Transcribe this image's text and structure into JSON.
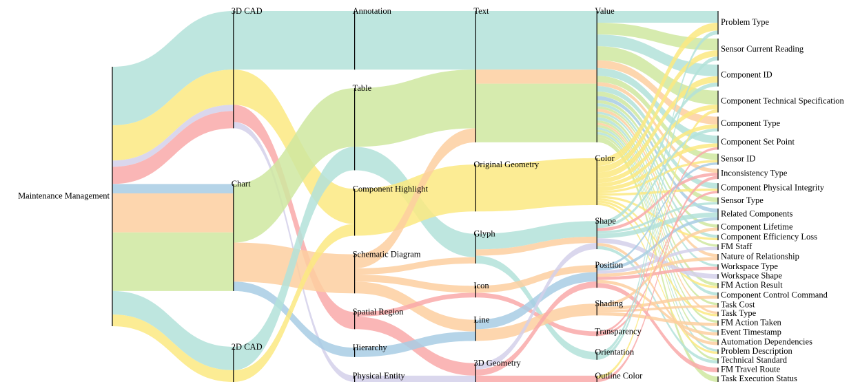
{
  "chart_data": {
    "type": "sankey",
    "nodes": [
      {
        "name": "Maintenance Management",
        "column": 0
      },
      {
        "name": "3D CAD",
        "column": 1
      },
      {
        "name": "Chart",
        "column": 1
      },
      {
        "name": "2D CAD",
        "column": 1
      },
      {
        "name": "Annotation",
        "column": 2
      },
      {
        "name": "Table",
        "column": 2
      },
      {
        "name": "Component Highlight",
        "column": 2
      },
      {
        "name": "Schematic Diagram",
        "column": 2
      },
      {
        "name": "Spatial Region",
        "column": 2
      },
      {
        "name": "Hierarchy",
        "column": 2
      },
      {
        "name": "Physical Entity",
        "column": 2
      },
      {
        "name": "Text",
        "column": 3
      },
      {
        "name": "Original Geometry",
        "column": 3
      },
      {
        "name": "Glyph",
        "column": 3
      },
      {
        "name": "Icon",
        "column": 3
      },
      {
        "name": "Line",
        "column": 3
      },
      {
        "name": "3D Geometry",
        "column": 3
      },
      {
        "name": "Value",
        "column": 4
      },
      {
        "name": "Color",
        "column": 4
      },
      {
        "name": "Shape",
        "column": 4
      },
      {
        "name": "Position",
        "column": 4
      },
      {
        "name": "Shading",
        "column": 4
      },
      {
        "name": "Transparency",
        "column": 4
      },
      {
        "name": "Orientation",
        "column": 4
      },
      {
        "name": "Outline Color",
        "column": 4
      },
      {
        "name": "Problem Type",
        "column": 5
      },
      {
        "name": "Sensor Current Reading",
        "column": 5
      },
      {
        "name": "Component ID",
        "column": 5
      },
      {
        "name": "Component Technical Specification",
        "column": 5
      },
      {
        "name": "Component Type",
        "column": 5
      },
      {
        "name": "Component Set Point",
        "column": 5
      },
      {
        "name": "Sensor ID",
        "column": 5
      },
      {
        "name": "Inconsistency Type",
        "column": 5
      },
      {
        "name": "Component Physical Integrity",
        "column": 5
      },
      {
        "name": "Sensor Type",
        "column": 5
      },
      {
        "name": "Related Components",
        "column": 5
      },
      {
        "name": "Component Lifetime",
        "column": 5
      },
      {
        "name": "Component Efficiency Loss",
        "column": 5
      },
      {
        "name": "FM Staff",
        "column": 5
      },
      {
        "name": "Nature of Relationship",
        "column": 5
      },
      {
        "name": "Workspace Type",
        "column": 5
      },
      {
        "name": "Workspace Shape",
        "column": 5
      },
      {
        "name": "FM Action Result",
        "column": 5
      },
      {
        "name": "Component Control Command",
        "column": 5
      },
      {
        "name": "Task Cost",
        "column": 5
      },
      {
        "name": "Task Type",
        "column": 5
      },
      {
        "name": "FM Action Taken",
        "column": 5
      },
      {
        "name": "Event Timestamp",
        "column": 5
      },
      {
        "name": "Automation Dependencies",
        "column": 5
      },
      {
        "name": "Problem Description",
        "column": 5
      },
      {
        "name": "Technical Standard",
        "column": 5
      },
      {
        "name": "FM Travel Route",
        "column": 5
      },
      {
        "name": "Task Execution Status",
        "column": 5
      }
    ],
    "links": [
      {
        "source": 0,
        "target": 1,
        "value": 7.5,
        "color": "#b3e2d9"
      },
      {
        "source": 0,
        "target": 1,
        "value": 4.5,
        "color": "#fbe981"
      },
      {
        "source": 0,
        "target": 1,
        "value": 0.8,
        "color": "#d3d0ea"
      },
      {
        "source": 0,
        "target": 1,
        "value": 2.2,
        "color": "#f9a9a9"
      },
      {
        "source": 0,
        "target": 2,
        "value": 1.2,
        "color": "#a8cce4"
      },
      {
        "source": 0,
        "target": 2,
        "value": 5,
        "color": "#fdcfa0"
      },
      {
        "source": 0,
        "target": 2,
        "value": 7.5,
        "color": "#cfe8a0"
      },
      {
        "source": 0,
        "target": 3,
        "value": 3,
        "color": "#b3e2d9"
      },
      {
        "source": 0,
        "target": 3,
        "value": 1.5,
        "color": "#fbe981"
      },
      {
        "source": 1,
        "target": 4,
        "value": 7.5,
        "color": "#b3e2d9"
      },
      {
        "source": 1,
        "target": 6,
        "value": 4.5,
        "color": "#fbe981"
      },
      {
        "source": 1,
        "target": 8,
        "value": 2.2,
        "color": "#f9a9a9"
      },
      {
        "source": 1,
        "target": 10,
        "value": 0.8,
        "color": "#d3d0ea"
      },
      {
        "source": 2,
        "target": 5,
        "value": 7.5,
        "color": "#cfe8a0"
      },
      {
        "source": 2,
        "target": 7,
        "value": 5,
        "color": "#fdcfa0"
      },
      {
        "source": 2,
        "target": 9,
        "value": 1.2,
        "color": "#a8cce4"
      },
      {
        "source": 3,
        "target": 5,
        "value": 3,
        "color": "#b3e2d9"
      },
      {
        "source": 3,
        "target": 6,
        "value": 1.5,
        "color": "#fbe981"
      },
      {
        "source": 4,
        "target": 11,
        "value": 7.5,
        "color": "#b3e2d9"
      },
      {
        "source": 5,
        "target": 11,
        "value": 7.5,
        "color": "#cfe8a0"
      },
      {
        "source": 5,
        "target": 13,
        "value": 3,
        "color": "#b3e2d9"
      },
      {
        "source": 6,
        "target": 12,
        "value": 6,
        "color": "#fbe981"
      },
      {
        "source": 7,
        "target": 11,
        "value": 1.8,
        "color": "#fdcfa0"
      },
      {
        "source": 7,
        "target": 13,
        "value": 0.8,
        "color": "#fdcfa0"
      },
      {
        "source": 7,
        "target": 14,
        "value": 0.9,
        "color": "#fdcfa0"
      },
      {
        "source": 7,
        "target": 15,
        "value": 1.5,
        "color": "#fdcfa0"
      },
      {
        "source": 8,
        "target": 14,
        "value": 0.6,
        "color": "#f9a9a9"
      },
      {
        "source": 8,
        "target": 16,
        "value": 1.6,
        "color": "#f9a9a9"
      },
      {
        "source": 9,
        "target": 15,
        "value": 1.2,
        "color": "#a8cce4"
      },
      {
        "source": 10,
        "target": 16,
        "value": 0.8,
        "color": "#d3d0ea"
      },
      {
        "source": 11,
        "target": 17,
        "value": 7.5,
        "color": "#b3e2d9"
      },
      {
        "source": 11,
        "target": 17,
        "value": 1.8,
        "color": "#fdcfa0"
      },
      {
        "source": 11,
        "target": 17,
        "value": 7.5,
        "color": "#cfe8a0"
      },
      {
        "source": 12,
        "target": 18,
        "value": 6,
        "color": "#fbe981"
      },
      {
        "source": 13,
        "target": 19,
        "value": 2,
        "color": "#b3e2d9"
      },
      {
        "source": 13,
        "target": 19,
        "value": 0.8,
        "color": "#fdcfa0"
      },
      {
        "source": 13,
        "target": 23,
        "value": 1,
        "color": "#b3e2d9"
      },
      {
        "source": 14,
        "target": 20,
        "value": 0.9,
        "color": "#fdcfa0"
      },
      {
        "source": 14,
        "target": 22,
        "value": 0.6,
        "color": "#f9a9a9"
      },
      {
        "source": 15,
        "target": 21,
        "value": 1.5,
        "color": "#fdcfa0"
      },
      {
        "source": 15,
        "target": 20,
        "value": 1.2,
        "color": "#a8cce4"
      },
      {
        "source": 16,
        "target": 24,
        "value": 0.8,
        "color": "#f9a9a9"
      },
      {
        "source": 16,
        "target": 19,
        "value": 0.8,
        "color": "#d3d0ea"
      },
      {
        "source": 16,
        "target": 20,
        "value": 0.8,
        "color": "#f9a9a9"
      },
      {
        "source": 17,
        "target": 25,
        "value": 1.5,
        "color": "#b3e2d9"
      },
      {
        "source": 17,
        "target": 26,
        "value": 1.5,
        "color": "#cfe8a0"
      },
      {
        "source": 17,
        "target": 27,
        "value": 1.5,
        "color": "#b3e2d9"
      },
      {
        "source": 17,
        "target": 28,
        "value": 1.8,
        "color": "#cfe8a0"
      },
      {
        "source": 17,
        "target": 29,
        "value": 1,
        "color": "#fdcfa0"
      },
      {
        "source": 17,
        "target": 30,
        "value": 1,
        "color": "#b3e2d9"
      },
      {
        "source": 17,
        "target": 31,
        "value": 0.8,
        "color": "#cfe8a0"
      },
      {
        "source": 17,
        "target": 32,
        "value": 0.5,
        "color": "#fdcfa0"
      },
      {
        "source": 17,
        "target": 33,
        "value": 0.7,
        "color": "#b3e2d9"
      },
      {
        "source": 17,
        "target": 34,
        "value": 0.6,
        "color": "#cfe8a0"
      },
      {
        "source": 17,
        "target": 35,
        "value": 0.5,
        "color": "#a8cce4"
      },
      {
        "source": 17,
        "target": 36,
        "value": 0.4,
        "color": "#cfe8a0"
      },
      {
        "source": 17,
        "target": 37,
        "value": 0.4,
        "color": "#b3e2d9"
      },
      {
        "source": 17,
        "target": 38,
        "value": 0.3,
        "color": "#cfe8a0"
      },
      {
        "source": 17,
        "target": 39,
        "value": 0.4,
        "color": "#fdcfa0"
      },
      {
        "source": 17,
        "target": 40,
        "value": 0.3,
        "color": "#b3e2d9"
      },
      {
        "source": 17,
        "target": 42,
        "value": 0.4,
        "color": "#cfe8a0"
      },
      {
        "source": 17,
        "target": 43,
        "value": 0.4,
        "color": "#b3e2d9"
      },
      {
        "source": 17,
        "target": 44,
        "value": 0.3,
        "color": "#cfe8a0"
      },
      {
        "source": 17,
        "target": 45,
        "value": 0.3,
        "color": "#fdcfa0"
      },
      {
        "source": 17,
        "target": 46,
        "value": 0.3,
        "color": "#cfe8a0"
      },
      {
        "source": 17,
        "target": 47,
        "value": 0.3,
        "color": "#b3e2d9"
      },
      {
        "source": 17,
        "target": 48,
        "value": 0.3,
        "color": "#cfe8a0"
      },
      {
        "source": 17,
        "target": 49,
        "value": 0.3,
        "color": "#b3e2d9"
      },
      {
        "source": 17,
        "target": 50,
        "value": 0.3,
        "color": "#cfe8a0"
      },
      {
        "source": 17,
        "target": 52,
        "value": 0.7,
        "color": "#cfe8a0"
      },
      {
        "source": 18,
        "target": 25,
        "value": 1,
        "color": "#fbe981"
      },
      {
        "source": 18,
        "target": 26,
        "value": 0.8,
        "color": "#fbe981"
      },
      {
        "source": 18,
        "target": 27,
        "value": 0.8,
        "color": "#fbe981"
      },
      {
        "source": 18,
        "target": 28,
        "value": 0.6,
        "color": "#fbe981"
      },
      {
        "source": 18,
        "target": 29,
        "value": 0.5,
        "color": "#fbe981"
      },
      {
        "source": 18,
        "target": 30,
        "value": 0.5,
        "color": "#fbe981"
      },
      {
        "source": 18,
        "target": 31,
        "value": 0.3,
        "color": "#fbe981"
      },
      {
        "source": 18,
        "target": 33,
        "value": 0.3,
        "color": "#fbe981"
      },
      {
        "source": 18,
        "target": 37,
        "value": 0.3,
        "color": "#fbe981"
      },
      {
        "source": 18,
        "target": 42,
        "value": 0.3,
        "color": "#fbe981"
      },
      {
        "source": 18,
        "target": 45,
        "value": 0.3,
        "color": "#fbe981"
      },
      {
        "source": 18,
        "target": 49,
        "value": 0.3,
        "color": "#fbe981"
      },
      {
        "source": 19,
        "target": 27,
        "value": 0.5,
        "color": "#b3e2d9"
      },
      {
        "source": 19,
        "target": 29,
        "value": 0.4,
        "color": "#b3e2d9"
      },
      {
        "source": 19,
        "target": 32,
        "value": 0.4,
        "color": "#f9a9a9"
      },
      {
        "source": 19,
        "target": 34,
        "value": 0.3,
        "color": "#b3e2d9"
      },
      {
        "source": 19,
        "target": 35,
        "value": 0.6,
        "color": "#b3e2d9"
      },
      {
        "source": 19,
        "target": 41,
        "value": 0.6,
        "color": "#d3d0ea"
      },
      {
        "source": 19,
        "target": 48,
        "value": 0.4,
        "color": "#fdcfa0"
      },
      {
        "source": 19,
        "target": 50,
        "value": 0.4,
        "color": "#b3e2d9"
      },
      {
        "source": 20,
        "target": 31,
        "value": 0.3,
        "color": "#a8cce4"
      },
      {
        "source": 20,
        "target": 35,
        "value": 0.4,
        "color": "#a8cce4"
      },
      {
        "source": 20,
        "target": 38,
        "value": 0.4,
        "color": "#d3d0ea"
      },
      {
        "source": 20,
        "target": 39,
        "value": 0.4,
        "color": "#fdcfa0"
      },
      {
        "source": 20,
        "target": 40,
        "value": 0.4,
        "color": "#f9a9a9"
      },
      {
        "source": 20,
        "target": 47,
        "value": 0.4,
        "color": "#fdcfa0"
      },
      {
        "source": 20,
        "target": 51,
        "value": 0.6,
        "color": "#f9a9a9"
      },
      {
        "source": 21,
        "target": 36,
        "value": 0.4,
        "color": "#fdcfa0"
      },
      {
        "source": 21,
        "target": 43,
        "value": 0.4,
        "color": "#fdcfa0"
      },
      {
        "source": 21,
        "target": 44,
        "value": 0.3,
        "color": "#fdcfa0"
      },
      {
        "source": 21,
        "target": 46,
        "value": 0.4,
        "color": "#fdcfa0"
      },
      {
        "source": 22,
        "target": 30,
        "value": 0.3,
        "color": "#f9a9a9"
      },
      {
        "source": 22,
        "target": 33,
        "value": 0.3,
        "color": "#f9a9a9"
      },
      {
        "source": 23,
        "target": 25,
        "value": 0.5,
        "color": "#b3e2d9"
      },
      {
        "source": 23,
        "target": 26,
        "value": 0.5,
        "color": "#b3e2d9"
      },
      {
        "source": 24,
        "target": 28,
        "value": 0.4,
        "color": "#fbe981"
      },
      {
        "source": 24,
        "target": 32,
        "value": 0.4,
        "color": "#f9a9a9"
      }
    ]
  }
}
